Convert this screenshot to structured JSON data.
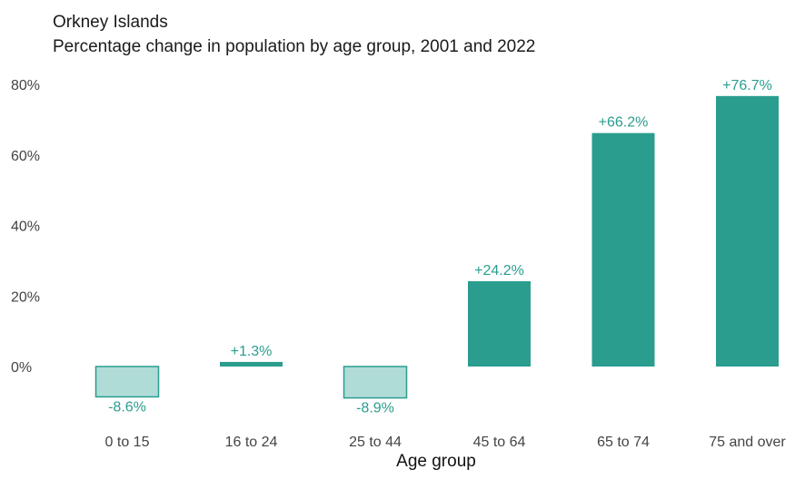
{
  "title": "Orkney Islands",
  "subtitle": "Percentage change in population by age group, 2001 and 2022",
  "colors": {
    "positive": "#2a9d8f",
    "negative_fill": "#b0dcd8",
    "negative_stroke": "#2a9d8f",
    "label": "#2a9d8f"
  },
  "chart_data": {
    "type": "bar",
    "title": "Orkney Islands",
    "subtitle": "Percentage change in population by age group, 2001 and 2022",
    "xlabel": "Age group",
    "ylabel": "",
    "categories": [
      "0 to 15",
      "16 to 24",
      "25 to 44",
      "45 to 64",
      "65 to 74",
      "75 and over"
    ],
    "values": [
      -8.6,
      1.3,
      -8.9,
      24.2,
      66.2,
      76.7
    ],
    "data_labels": [
      "-8.6%",
      "+1.3%",
      "-8.9%",
      "+24.2%",
      "+66.2%",
      "+76.7%"
    ],
    "yticks": [
      0,
      20,
      40,
      60,
      80
    ],
    "ytick_labels": [
      "0%",
      "20%",
      "40%",
      "60%",
      "80%"
    ],
    "ylim": [
      -10,
      80
    ],
    "grid": false,
    "legend": "none"
  }
}
